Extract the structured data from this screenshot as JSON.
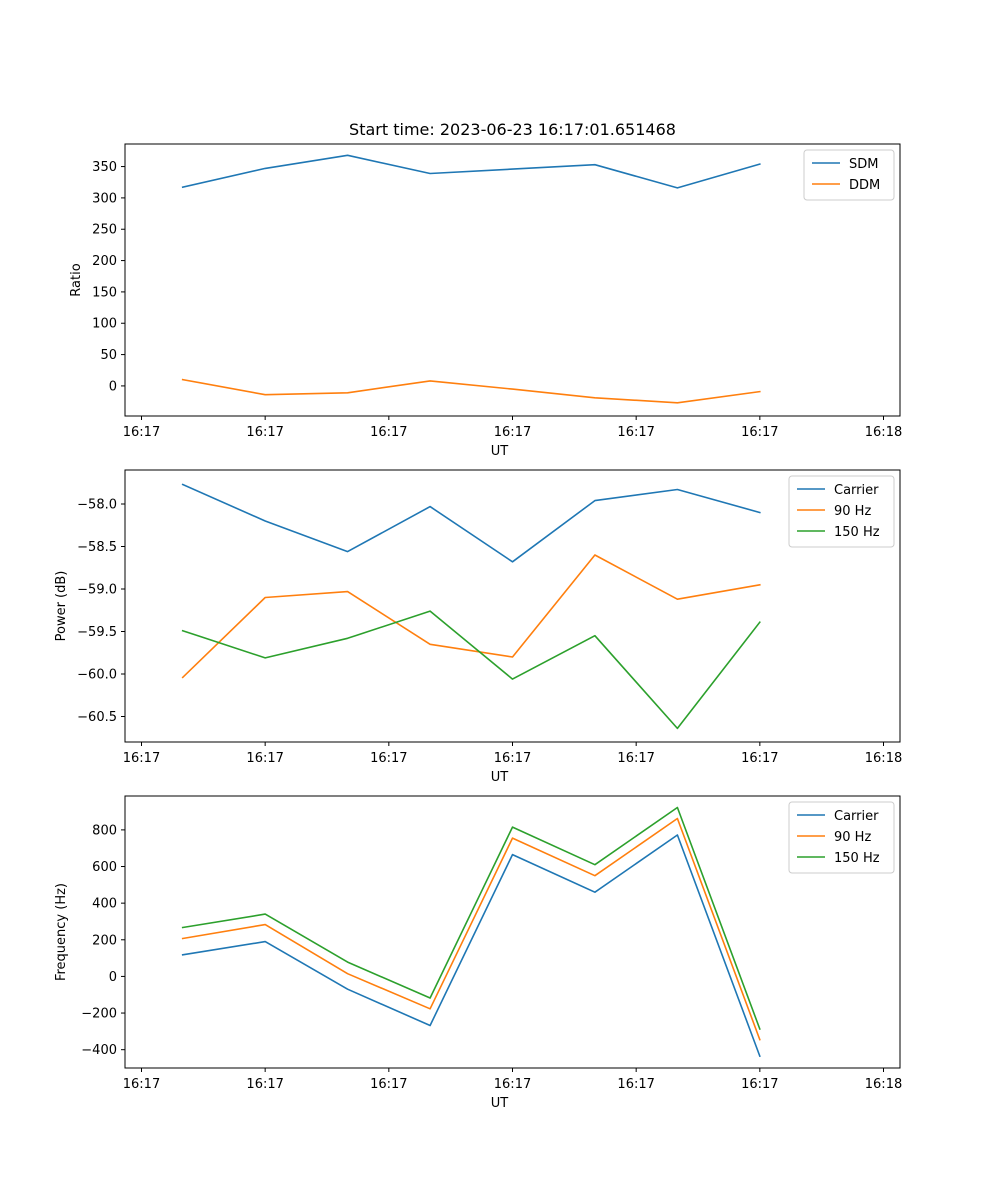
{
  "figure": {
    "title": "Start time: 2023-06-23 16:17:01.651468"
  },
  "colors": {
    "blue": "#1f77b4",
    "orange": "#ff7f0e",
    "green": "#2ca02c"
  },
  "chart_data": [
    {
      "type": "line",
      "title": "Start time: 2023-06-23 16:17:01.651468",
      "xlabel": "UT",
      "ylabel": "Ratio",
      "x": [
        1,
        2,
        3,
        4,
        5,
        6,
        7,
        8
      ],
      "xlim": [
        0.3,
        9.7
      ],
      "xticks": [
        0.5,
        2.0,
        3.5,
        5.0,
        6.5,
        8.0,
        9.5
      ],
      "xtick_labels": [
        "16:17",
        "16:17",
        "16:17",
        "16:17",
        "16:17",
        "16:17",
        "16:18"
      ],
      "ylim": [
        -48,
        386
      ],
      "yticks": [
        0,
        50,
        100,
        150,
        200,
        250,
        300,
        350
      ],
      "grid": false,
      "legend": "top-right",
      "series": [
        {
          "name": "SDM",
          "color": "#1f77b4",
          "values": [
            317,
            347,
            368,
            339,
            346,
            353,
            316,
            354
          ]
        },
        {
          "name": "DDM",
          "color": "#ff7f0e",
          "values": [
            10,
            -14,
            -11,
            8,
            -5,
            -19,
            -27,
            -9
          ]
        }
      ]
    },
    {
      "type": "line",
      "title": "",
      "xlabel": "UT",
      "ylabel": "Power (dB)",
      "x": [
        1,
        2,
        3,
        4,
        5,
        6,
        7,
        8
      ],
      "xlim": [
        0.3,
        9.7
      ],
      "xticks": [
        0.5,
        2.0,
        3.5,
        5.0,
        6.5,
        8.0,
        9.5
      ],
      "xtick_labels": [
        "16:17",
        "16:17",
        "16:17",
        "16:17",
        "16:17",
        "16:17",
        "16:18"
      ],
      "ylim": [
        -60.8,
        -57.6
      ],
      "yticks": [
        -58.0,
        -58.5,
        -59.0,
        -59.5,
        -60.0,
        -60.5
      ],
      "ytick_labels": [
        "−58.0",
        "−58.5",
        "−59.0",
        "−59.5",
        "−60.0",
        "−60.5"
      ],
      "grid": false,
      "legend": "top-right",
      "series": [
        {
          "name": "Carrier",
          "color": "#1f77b4",
          "values": [
            -57.77,
            -58.2,
            -58.56,
            -58.03,
            -58.68,
            -57.96,
            -57.83,
            -58.1
          ]
        },
        {
          "name": "90 Hz",
          "color": "#ff7f0e",
          "values": [
            -60.04,
            -59.1,
            -59.03,
            -59.65,
            -59.8,
            -58.6,
            -59.12,
            -58.95
          ]
        },
        {
          "name": "150 Hz",
          "color": "#2ca02c",
          "values": [
            -59.49,
            -59.81,
            -59.58,
            -59.26,
            -60.06,
            -59.55,
            -60.64,
            -59.39
          ]
        }
      ]
    },
    {
      "type": "line",
      "title": "",
      "xlabel": "UT",
      "ylabel": "Frequency (Hz)",
      "x": [
        1,
        2,
        3,
        4,
        5,
        6,
        7,
        8
      ],
      "xlim": [
        0.3,
        9.7
      ],
      "xticks": [
        0.5,
        2.0,
        3.5,
        5.0,
        6.5,
        8.0,
        9.5
      ],
      "xtick_labels": [
        "16:17",
        "16:17",
        "16:17",
        "16:17",
        "16:17",
        "16:17",
        "16:18"
      ],
      "ylim": [
        -500,
        985
      ],
      "yticks": [
        800,
        600,
        400,
        200,
        0,
        -200,
        -400
      ],
      "ytick_labels": [
        "800",
        "600",
        "400",
        "200",
        "0",
        "−200",
        "−400"
      ],
      "grid": false,
      "legend": "top-right",
      "series": [
        {
          "name": "Carrier",
          "color": "#1f77b4",
          "values": [
            118,
            190,
            -70,
            -268,
            665,
            460,
            772,
            -435
          ]
        },
        {
          "name": "90 Hz",
          "color": "#ff7f0e",
          "values": [
            207,
            283,
            15,
            -177,
            755,
            550,
            862,
            -345
          ]
        },
        {
          "name": "150 Hz",
          "color": "#2ca02c",
          "values": [
            267,
            340,
            78,
            -118,
            815,
            610,
            922,
            -287
          ]
        }
      ]
    }
  ]
}
